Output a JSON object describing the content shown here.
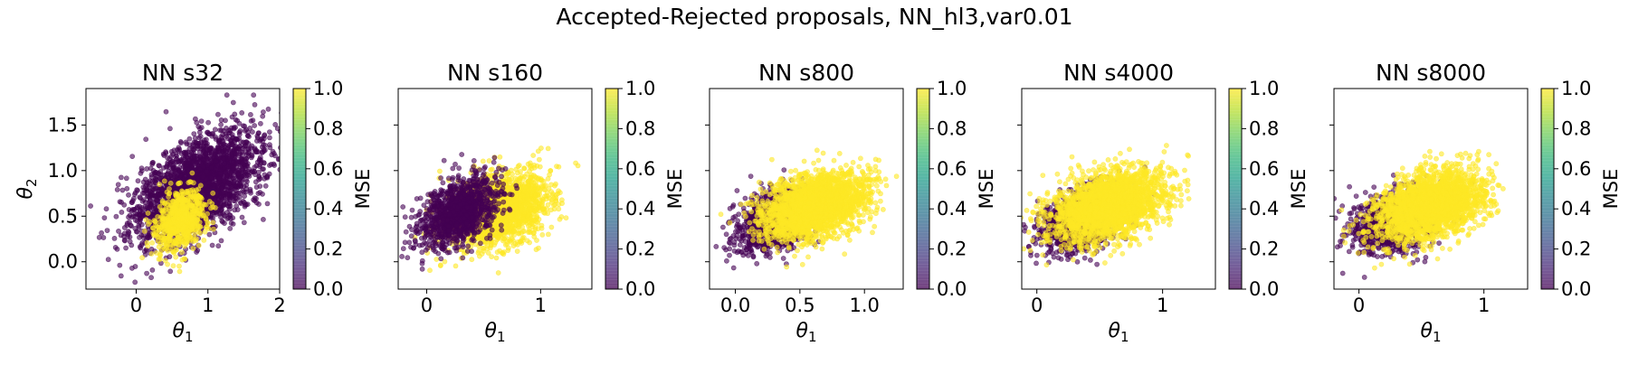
{
  "figure": {
    "suptitle": "Accepted-Rejected proposals, NN_hl3,var0.01"
  },
  "chart_data": [
    {
      "type": "scatter",
      "title": "NN s32",
      "xlabel_symbol": "θ",
      "xlabel_sub": "1",
      "ylabel_symbol": "θ",
      "ylabel_sub": "2",
      "xlim": [
        -0.7,
        2.0
      ],
      "ylim": [
        -0.3,
        1.9
      ],
      "xticks": [
        0,
        1,
        2
      ],
      "xtick_labels": [
        "0",
        "1",
        "2"
      ],
      "yticks": [
        0.0,
        0.5,
        1.0,
        1.5
      ],
      "ytick_labels": [
        "0.0",
        "0.5",
        "1.0",
        "1.5"
      ],
      "show_ytick_labels": true,
      "series": [
        {
          "mse": 0.0,
          "n": 2600,
          "mean": [
            0.85,
            0.82
          ],
          "sd": [
            0.43,
            0.3
          ],
          "corr": 0.55
        },
        {
          "mse": 1.0,
          "n": 700,
          "mean": [
            0.62,
            0.46
          ],
          "sd": [
            0.17,
            0.17
          ],
          "corr": 0.3
        }
      ],
      "colorbar": {
        "label": "MSE",
        "range": [
          0.0,
          1.0
        ],
        "ticks": [
          "0.0",
          "0.2",
          "0.4",
          "0.6",
          "0.8",
          "1.0"
        ]
      }
    },
    {
      "type": "scatter",
      "title": "NN s160",
      "xlabel_symbol": "θ",
      "xlabel_sub": "1",
      "xlim": [
        -0.25,
        1.45
      ],
      "ylim": [
        -0.3,
        1.9
      ],
      "xticks": [
        0,
        1
      ],
      "xtick_labels": [
        "0",
        "1"
      ],
      "yticks": [
        0.0,
        0.5,
        1.0,
        1.5
      ],
      "show_ytick_labels": false,
      "series": [
        {
          "mse": 1.0,
          "n": 2000,
          "mean": [
            0.62,
            0.58
          ],
          "sd": [
            0.22,
            0.2
          ],
          "corr": 0.35
        },
        {
          "mse": 0.0,
          "n": 1200,
          "mean": [
            0.28,
            0.55
          ],
          "sd": [
            0.17,
            0.2
          ],
          "corr": 0.4
        }
      ],
      "colorbar": {
        "label": "MSE",
        "range": [
          0.0,
          1.0
        ],
        "ticks": [
          "0.0",
          "0.2",
          "0.4",
          "0.6",
          "0.8",
          "1.0"
        ]
      }
    },
    {
      "type": "scatter",
      "title": "NN s800",
      "xlabel_symbol": "θ",
      "xlabel_sub": "1",
      "xlim": [
        -0.2,
        1.3
      ],
      "ylim": [
        -0.3,
        1.9
      ],
      "xticks": [
        0.0,
        0.5,
        1.0
      ],
      "xtick_labels": [
        "0.0",
        "0.5",
        "1.0"
      ],
      "yticks": [
        0.0,
        0.5,
        1.0,
        1.5
      ],
      "show_ytick_labels": false,
      "series": [
        {
          "mse": 0.0,
          "n": 1000,
          "mean": [
            0.3,
            0.45
          ],
          "sd": [
            0.15,
            0.17
          ],
          "corr": 0.35
        },
        {
          "mse": 1.0,
          "n": 2400,
          "mean": [
            0.62,
            0.62
          ],
          "sd": [
            0.2,
            0.18
          ],
          "corr": 0.35
        }
      ],
      "colorbar": {
        "label": "MSE",
        "range": [
          0.0,
          1.0
        ],
        "ticks": [
          "0.0",
          "0.2",
          "0.4",
          "0.6",
          "0.8",
          "1.0"
        ]
      }
    },
    {
      "type": "scatter",
      "title": "NN s4000",
      "xlabel_symbol": "θ",
      "xlabel_sub": "1",
      "xlim": [
        -0.12,
        1.42
      ],
      "ylim": [
        -0.3,
        1.9
      ],
      "xticks": [
        0,
        1
      ],
      "xtick_labels": [
        "0",
        "1"
      ],
      "yticks": [
        0.0,
        0.5,
        1.0,
        1.5
      ],
      "show_ytick_labels": false,
      "series": [
        {
          "mse": 0.0,
          "n": 1100,
          "mean": [
            0.35,
            0.45
          ],
          "sd": [
            0.17,
            0.17
          ],
          "corr": 0.35
        },
        {
          "mse": 1.0,
          "n": 2300,
          "mean": [
            0.58,
            0.62
          ],
          "sd": [
            0.22,
            0.19
          ],
          "corr": 0.35
        }
      ],
      "colorbar": {
        "label": "MSE",
        "range": [
          0.0,
          1.0
        ],
        "ticks": [
          "0.0",
          "0.2",
          "0.4",
          "0.6",
          "0.8",
          "1.0"
        ]
      }
    },
    {
      "type": "scatter",
      "title": "NN s8000",
      "xlabel_symbol": "θ",
      "xlabel_sub": "1",
      "xlim": [
        -0.2,
        1.35
      ],
      "ylim": [
        -0.3,
        1.9
      ],
      "xticks": [
        0,
        1
      ],
      "xtick_labels": [
        "0",
        "1"
      ],
      "yticks": [
        0.0,
        0.5,
        1.0,
        1.5
      ],
      "show_ytick_labels": false,
      "series": [
        {
          "mse": 0.0,
          "n": 1100,
          "mean": [
            0.3,
            0.45
          ],
          "sd": [
            0.17,
            0.17
          ],
          "corr": 0.35
        },
        {
          "mse": 1.0,
          "n": 2300,
          "mean": [
            0.58,
            0.62
          ],
          "sd": [
            0.21,
            0.19
          ],
          "corr": 0.35
        }
      ],
      "colorbar": {
        "label": "MSE",
        "range": [
          0.0,
          1.0
        ],
        "ticks": [
          "0.0",
          "0.2",
          "0.4",
          "0.6",
          "0.8",
          "1.0"
        ]
      }
    }
  ],
  "colors": {
    "mse_0": "#440154",
    "mse_1": "#fde725",
    "colormap": "viridis"
  }
}
